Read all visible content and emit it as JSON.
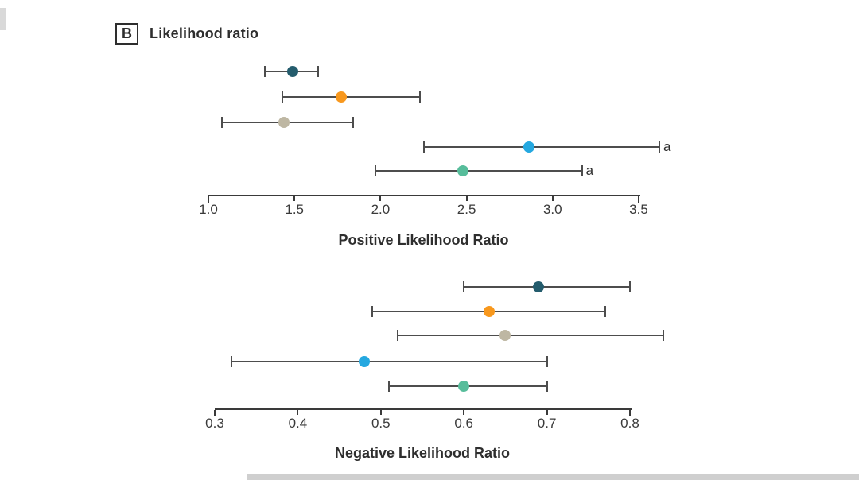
{
  "panel": {
    "letter": "B",
    "title": "Likelihood ratio"
  },
  "footnote_marker": "a",
  "colors": {
    "whisker": "#4d4d4d",
    "axis": "#3a3a3a",
    "text": "#2e2e2e",
    "series": [
      "#245C6D",
      "#F8981D",
      "#BEB7A3",
      "#25A8E0",
      "#57BD9B"
    ]
  },
  "chart_data": [
    {
      "type": "scatter",
      "subtype": "forest-plot",
      "title": "",
      "xlabel": "Positive Likelihood Ratio",
      "ylabel": "",
      "xlim": [
        1.0,
        3.5
      ],
      "grid": false,
      "tick_values": [
        1.0,
        1.5,
        2.0,
        2.5,
        3.0,
        3.5
      ],
      "tick_labels": [
        "1.0",
        "1.5",
        "2.0",
        "2.5",
        "3.0",
        "3.5"
      ],
      "series": [
        {
          "name": "series-dark-teal",
          "color": "#245C6D",
          "estimate": 1.49,
          "ci_low": 1.33,
          "ci_high": 1.64,
          "note": ""
        },
        {
          "name": "series-orange",
          "color": "#F8981D",
          "estimate": 1.77,
          "ci_low": 1.43,
          "ci_high": 2.23,
          "note": ""
        },
        {
          "name": "series-tan",
          "color": "#BEB7A3",
          "estimate": 1.44,
          "ci_low": 1.08,
          "ci_high": 1.84,
          "note": ""
        },
        {
          "name": "series-sky-blue",
          "color": "#25A8E0",
          "estimate": 2.86,
          "ci_low": 2.25,
          "ci_high": 3.62,
          "note": "a"
        },
        {
          "name": "series-sea-green",
          "color": "#57BD9B",
          "estimate": 2.48,
          "ci_low": 1.97,
          "ci_high": 3.17,
          "note": "a"
        }
      ]
    },
    {
      "type": "scatter",
      "subtype": "forest-plot",
      "title": "",
      "xlabel": "Negative Likelihood Ratio",
      "ylabel": "",
      "xlim": [
        0.3,
        0.8
      ],
      "grid": false,
      "tick_values": [
        0.3,
        0.4,
        0.5,
        0.6,
        0.7,
        0.8
      ],
      "tick_labels": [
        "0.3",
        "0.4",
        "0.5",
        "0.6",
        "0.7",
        "0.8"
      ],
      "series": [
        {
          "name": "series-dark-teal",
          "color": "#245C6D",
          "estimate": 0.69,
          "ci_low": 0.6,
          "ci_high": 0.8,
          "note": ""
        },
        {
          "name": "series-orange",
          "color": "#F8981D",
          "estimate": 0.63,
          "ci_low": 0.49,
          "ci_high": 0.77,
          "note": ""
        },
        {
          "name": "series-tan",
          "color": "#BEB7A3",
          "estimate": 0.65,
          "ci_low": 0.52,
          "ci_high": 0.84,
          "note": ""
        },
        {
          "name": "series-sky-blue",
          "color": "#25A8E0",
          "estimate": 0.48,
          "ci_low": 0.32,
          "ci_high": 0.7,
          "note": ""
        },
        {
          "name": "series-sea-green",
          "color": "#57BD9B",
          "estimate": 0.6,
          "ci_low": 0.51,
          "ci_high": 0.7,
          "note": ""
        }
      ]
    }
  ]
}
